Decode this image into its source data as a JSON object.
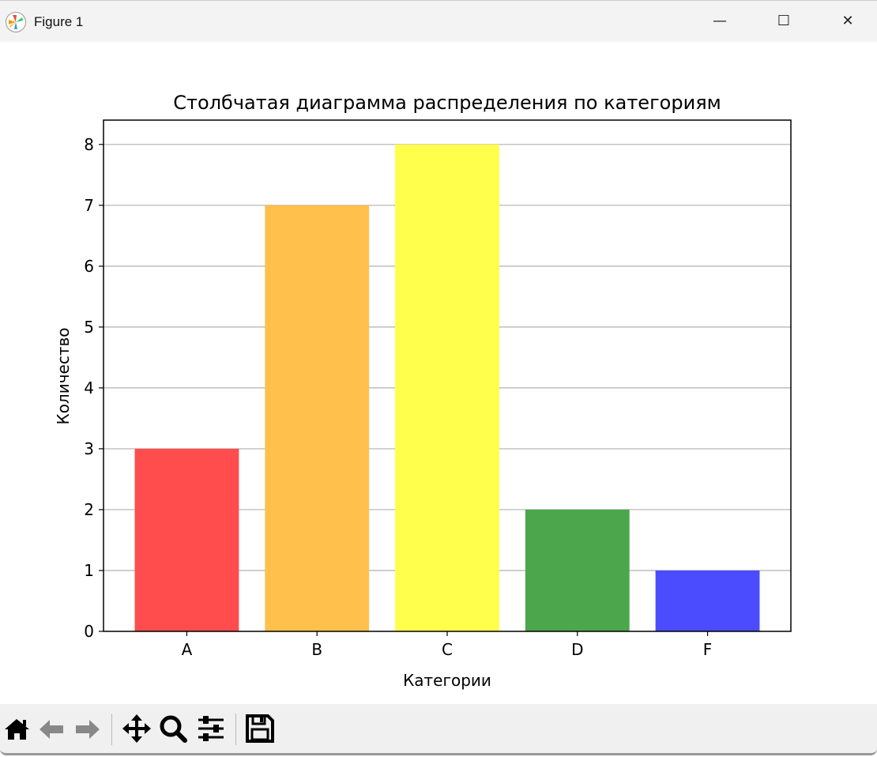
{
  "window": {
    "title": "Figure 1",
    "minimize_icon": "minimize-icon",
    "maximize_icon": "maximize-icon",
    "close_icon": "close-icon"
  },
  "toolbar": {
    "buttons": [
      "home-icon",
      "back-arrow-icon",
      "forward-arrow-icon",
      "pan-icon",
      "zoom-icon",
      "configure-subplots-icon",
      "save-icon"
    ]
  },
  "chart_data": {
    "type": "bar",
    "title": "Столбчатая диаграмма распределения по категориям",
    "xlabel": "Категории",
    "ylabel": "Количество",
    "categories": [
      "A",
      "B",
      "C",
      "D",
      "F"
    ],
    "values": [
      3,
      7,
      8,
      2,
      1
    ],
    "colors": [
      "#ff4c4c",
      "#ffc04c",
      "#ffff4c",
      "#4ca64c",
      "#4c4cff"
    ],
    "ylim": [
      0,
      8.4
    ],
    "yticks": [
      0,
      1,
      2,
      3,
      4,
      5,
      6,
      7,
      8
    ],
    "grid": "y",
    "grid_color": "#b0b0b0"
  }
}
